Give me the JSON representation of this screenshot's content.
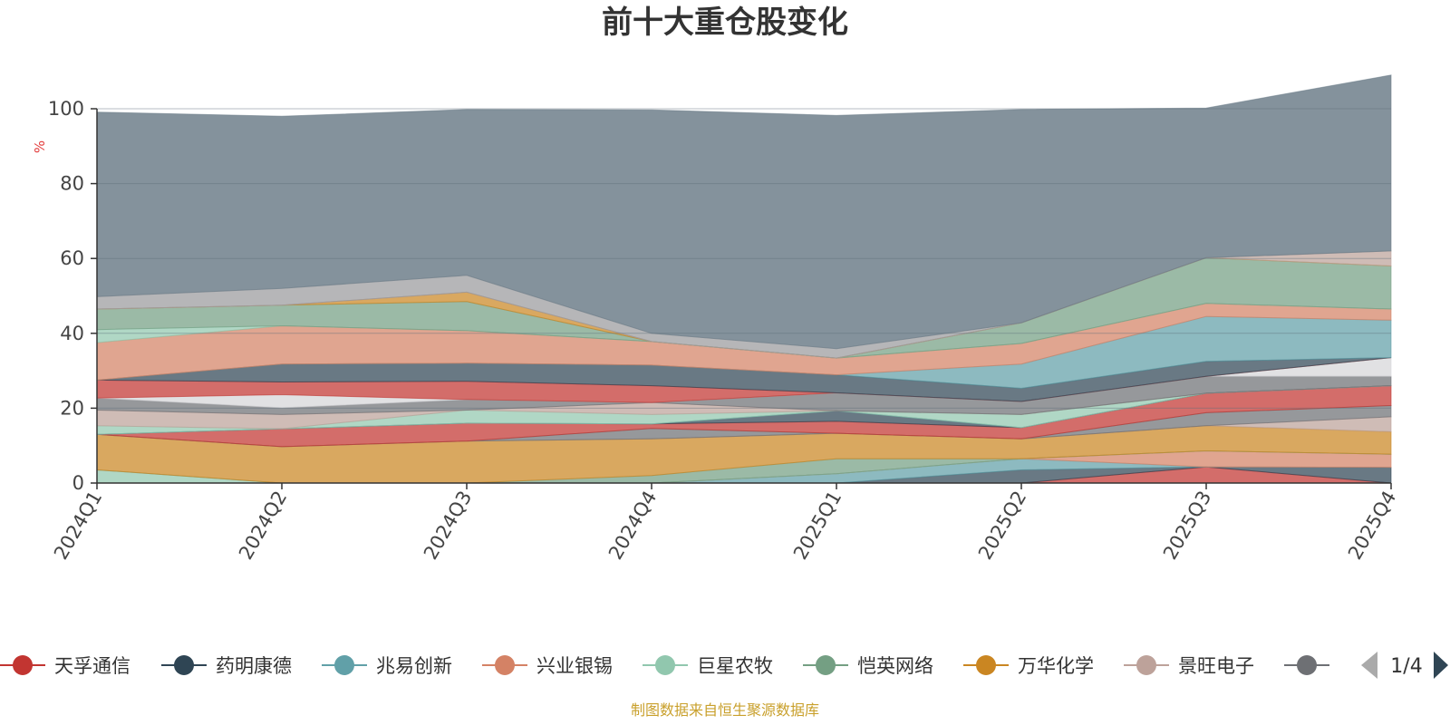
{
  "chart_data": {
    "type": "area",
    "stacked": true,
    "title": "前十大重仓股变化",
    "ylabel": "%",
    "ylim": [
      0,
      100
    ],
    "yticks": [
      "0",
      "20",
      "40",
      "60",
      "80",
      "100"
    ],
    "grid": true,
    "legend_position": "bottom",
    "categories": [
      "2024Q1",
      "2024Q2",
      "2024Q3",
      "2024Q4",
      "2025Q1",
      "2025Q2",
      "2025Q3",
      "2025Q4"
    ],
    "series": [
      {
        "name": "天孚通信",
        "color": "#c23531",
        "values": [
          0,
          0,
          0,
          0,
          0,
          0,
          4.3,
          0
        ]
      },
      {
        "name": "药明康德",
        "color": "#2f4554",
        "values": [
          0,
          0,
          0,
          0,
          0,
          3.5,
          0,
          4.2
        ]
      },
      {
        "name": "兆易创新",
        "color": "#61a0a8",
        "values": [
          0,
          0,
          0,
          0,
          2.5,
          3.0,
          0,
          0
        ]
      },
      {
        "name": "兴业银锡",
        "color": "#d48265",
        "values": [
          0,
          0,
          0,
          0,
          0,
          0,
          4.3,
          3.5
        ]
      },
      {
        "name": "巨星农牧",
        "color": "#91c7ae",
        "values": [
          3.5,
          0,
          0,
          0,
          0,
          0,
          0,
          0
        ]
      },
      {
        "name": "恺英网络",
        "color": "#749f83",
        "values": [
          0,
          0,
          0,
          2.0,
          4.0,
          0,
          0,
          0
        ]
      },
      {
        "name": "万华化学",
        "color": "#ca8622",
        "values": [
          9.5,
          9.7,
          11.2,
          9.8,
          6.8,
          5.3,
          6.7,
          6.0
        ]
      },
      {
        "name": "景旺电子",
        "color": "#bda29a",
        "values": [
          0,
          0,
          0,
          0,
          0,
          0,
          0,
          4.0
        ]
      },
      {
        "name": "",
        "color": "#6e7074",
        "values": [
          0,
          0,
          0,
          2.8,
          0,
          0,
          3.5,
          3.0
        ]
      },
      {
        "name": "",
        "color": "#c23531",
        "values": [
          0,
          4.8,
          4.8,
          1.2,
          3.2,
          3.0,
          5.2,
          5.3
        ]
      },
      {
        "name": "",
        "color": "#2f4554",
        "values": [
          0,
          0,
          0,
          0,
          2.8,
          0,
          0,
          0
        ]
      },
      {
        "name": "",
        "color": "#61a0a8",
        "values": [
          0,
          0,
          0,
          0,
          0,
          0,
          0,
          0
        ]
      },
      {
        "name": "",
        "color": "#91c7ae",
        "values": [
          2.3,
          0,
          3.5,
          2.5,
          0,
          3.5,
          0,
          0
        ]
      },
      {
        "name": "",
        "color": "#bda29a",
        "values": [
          4.2,
          3.8,
          0,
          3.2,
          0,
          0,
          0,
          0
        ]
      },
      {
        "name": "",
        "color": "#6e7074",
        "values": [
          3.2,
          1.8,
          2.8,
          0,
          4.8,
          3.5,
          4.5,
          2.5
        ]
      },
      {
        "name": "",
        "color": "#d5d5d8",
        "values": [
          0,
          3.5,
          0,
          0,
          0,
          0,
          0,
          5.0
        ]
      },
      {
        "name": "",
        "color": "#c23531",
        "values": [
          4.8,
          3.4,
          4.9,
          4.5,
          0,
          0,
          0,
          0
        ]
      },
      {
        "name": "",
        "color": "#2f4554",
        "values": [
          0,
          4.8,
          4.8,
          5.5,
          4.8,
          3.5,
          4.0,
          0
        ]
      },
      {
        "name": "",
        "color": "#61a0a8",
        "values": [
          0,
          0,
          0,
          0,
          0,
          6.5,
          12.0,
          10.0
        ]
      },
      {
        "name": "",
        "color": "#d48265",
        "values": [
          10.0,
          10.2,
          8.7,
          6.3,
          4.5,
          5.5,
          3.5,
          3.0
        ]
      },
      {
        "name": "",
        "color": "#91c7ae",
        "values": [
          3.5,
          0,
          0,
          0,
          0,
          0,
          0,
          0
        ]
      },
      {
        "name": "",
        "color": "#749f83",
        "values": [
          5.5,
          5.5,
          7.8,
          0,
          0,
          5.5,
          12.2,
          11.5
        ]
      },
      {
        "name": "",
        "color": "#ca8622",
        "values": [
          0,
          0,
          2.5,
          0,
          0,
          0,
          0,
          0
        ]
      },
      {
        "name": "",
        "color": "#bda29a",
        "values": [
          0,
          0,
          0,
          0,
          0,
          0,
          0,
          4.0
        ]
      },
      {
        "name": "",
        "color": "#9a9a9d",
        "values": [
          3.3,
          4.5,
          4.5,
          2.2,
          2.5,
          0,
          0,
          0
        ]
      },
      {
        "name": "",
        "color": "#6e7f8b",
        "values": [
          49.3,
          46.0,
          44.3,
          59.7,
          62.3,
          57.0,
          40.0,
          47.0
        ]
      }
    ]
  },
  "legend": {
    "items": [
      {
        "name": "天孚通信",
        "color": "#c23531"
      },
      {
        "name": "药明康德",
        "color": "#2f4554"
      },
      {
        "name": "兆易创新",
        "color": "#61a0a8"
      },
      {
        "name": "兴业银锡",
        "color": "#d48265"
      },
      {
        "name": "巨星农牧",
        "color": "#91c7ae"
      },
      {
        "name": "恺英网络",
        "color": "#749f83"
      },
      {
        "name": "万华化学",
        "color": "#ca8622"
      },
      {
        "name": "景旺电子",
        "color": "#bda29a"
      },
      {
        "name": "",
        "color": "#6e7074"
      }
    ],
    "page_indicator": "1/4",
    "prev_icon": "triangle-left-icon",
    "next_icon": "triangle-right-icon"
  },
  "source_note": "制图数据来自恒生聚源数据库"
}
